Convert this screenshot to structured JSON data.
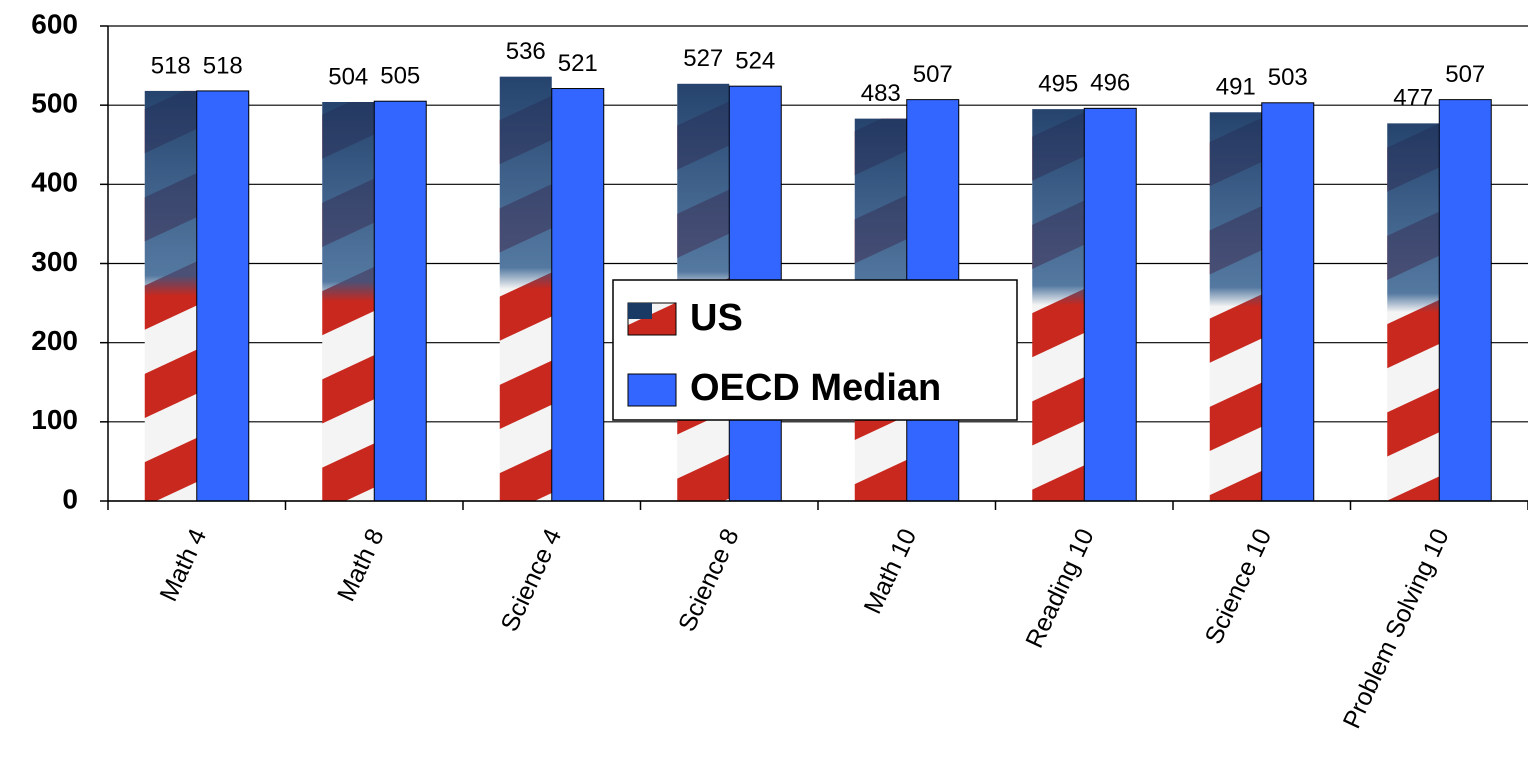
{
  "chart_data": {
    "type": "bar",
    "categories": [
      "Math 4",
      "Math 8",
      "Science 4",
      "Science 8",
      "Math 10",
      "Reading 10",
      "Science 10",
      "Problem Solving 10"
    ],
    "series": [
      {
        "name": "US",
        "color": "#c8281e",
        "values": [
          518,
          504,
          536,
          527,
          483,
          495,
          491,
          477
        ]
      },
      {
        "name": "OECD Median",
        "color": "#3366ff",
        "values": [
          518,
          505,
          521,
          524,
          507,
          496,
          503,
          507
        ]
      }
    ],
    "ylim": [
      0,
      600
    ],
    "yticks": [
      0,
      100,
      200,
      300,
      400,
      500,
      600
    ],
    "grid": true
  }
}
